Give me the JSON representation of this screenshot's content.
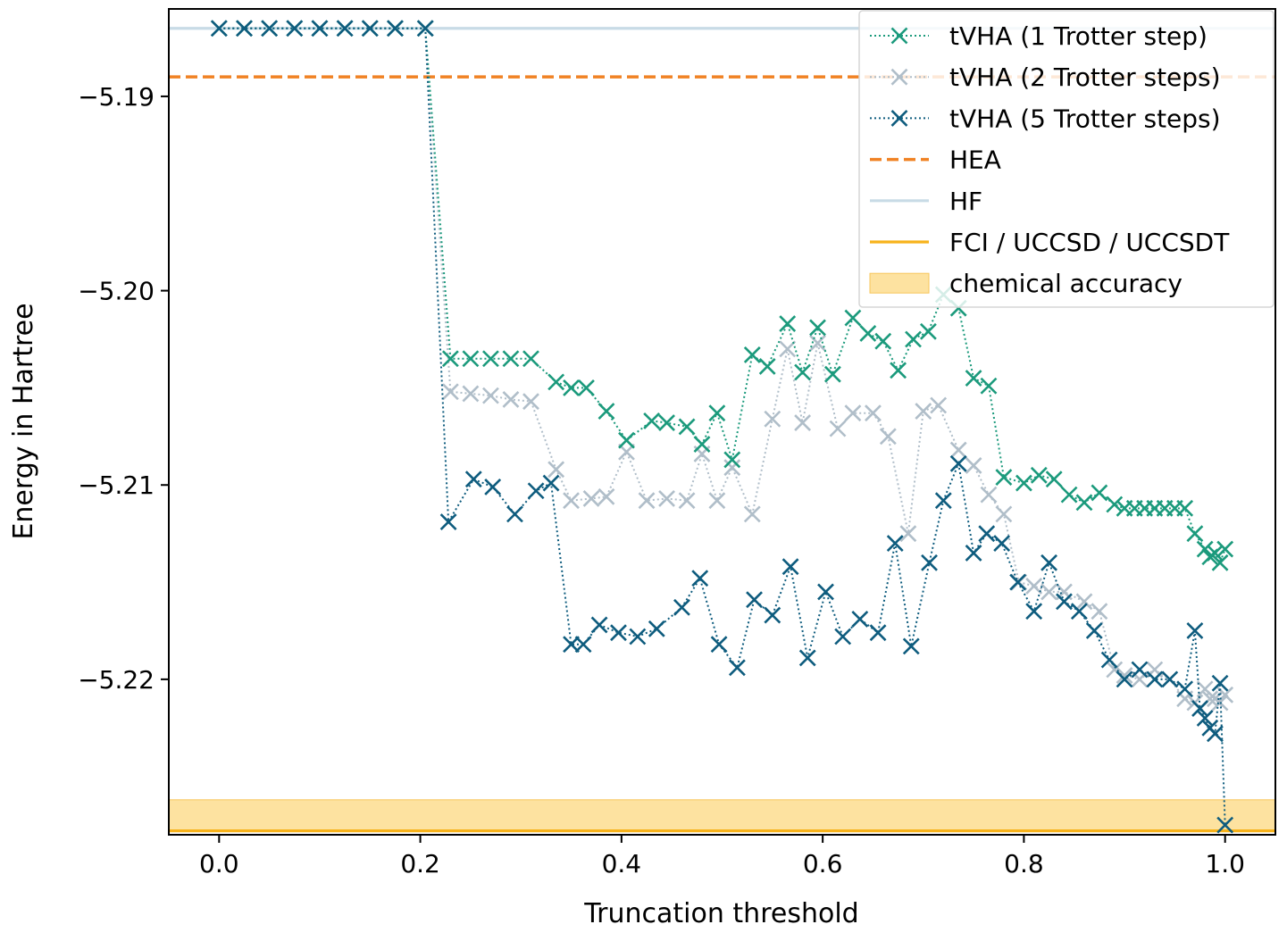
{
  "chart_data": {
    "type": "line",
    "title": "",
    "xlabel": "Truncation threshold",
    "ylabel": "Energy in Hartree",
    "xlim": [
      -0.05,
      1.05
    ],
    "ylim": [
      -5.228,
      -5.1855
    ],
    "xticks": [
      0.0,
      0.2,
      0.4,
      0.6,
      0.8,
      1.0
    ],
    "xtick_labels": [
      "0.0",
      "0.2",
      "0.4",
      "0.6",
      "0.8",
      "1.0"
    ],
    "yticks": [
      -5.19,
      -5.2,
      -5.21,
      -5.22
    ],
    "ytick_labels": [
      "−5.19",
      "−5.20",
      "−5.21",
      "−5.22"
    ],
    "grid": false,
    "legend_position": "top-right",
    "colors": {
      "t1": "#1b9a7c",
      "t2": "#b0bec9",
      "t5": "#0e5c7e",
      "hea": "#f08224",
      "hf": "#c8dbe6",
      "fci": "#f7b21a",
      "band": "#fde2a0"
    },
    "series": [
      {
        "name": "tVHA (1 Trotter step)",
        "color_key": "t1",
        "x": [
          0,
          0.025,
          0.05,
          0.075,
          0.1,
          0.125,
          0.15,
          0.175,
          0.205,
          0.23,
          0.25,
          0.27,
          0.29,
          0.31,
          0.335,
          0.35,
          0.365,
          0.385,
          0.405,
          0.43,
          0.445,
          0.465,
          0.48,
          0.495,
          0.51,
          0.53,
          0.545,
          0.565,
          0.58,
          0.595,
          0.61,
          0.63,
          0.645,
          0.66,
          0.675,
          0.69,
          0.705,
          0.72,
          0.735,
          0.75,
          0.765,
          0.78,
          0.8,
          0.815,
          0.83,
          0.845,
          0.86,
          0.875,
          0.89,
          0.9,
          0.91,
          0.92,
          0.93,
          0.94,
          0.95,
          0.96,
          0.97,
          0.98,
          0.985,
          0.99,
          0.995,
          1.0
        ],
        "values": [
          -5.1865,
          -5.1865,
          -5.1865,
          -5.1865,
          -5.1865,
          -5.1865,
          -5.1865,
          -5.1865,
          -5.1865,
          -5.2035,
          -5.2035,
          -5.2035,
          -5.2035,
          -5.2035,
          -5.2047,
          -5.205,
          -5.205,
          -5.2062,
          -5.2077,
          -5.2067,
          -5.2068,
          -5.207,
          -5.2079,
          -5.2063,
          -5.2087,
          -5.2033,
          -5.2039,
          -5.2017,
          -5.2042,
          -5.2019,
          -5.2043,
          -5.2014,
          -5.2022,
          -5.2026,
          -5.2041,
          -5.2025,
          -5.2021,
          -5.2002,
          -5.2009,
          -5.2045,
          -5.2049,
          -5.2096,
          -5.2099,
          -5.2095,
          -5.2097,
          -5.2105,
          -5.2109,
          -5.2104,
          -5.211,
          -5.2112,
          -5.2112,
          -5.2112,
          -5.2112,
          -5.2112,
          -5.2112,
          -5.2112,
          -5.2125,
          -5.2133,
          -5.2137,
          -5.2135,
          -5.214,
          -5.2133
        ]
      },
      {
        "name": "tVHA (2 Trotter steps)",
        "color_key": "t2",
        "x": [
          0,
          0.025,
          0.05,
          0.075,
          0.1,
          0.125,
          0.15,
          0.175,
          0.205,
          0.23,
          0.25,
          0.27,
          0.29,
          0.31,
          0.335,
          0.35,
          0.37,
          0.385,
          0.405,
          0.425,
          0.445,
          0.465,
          0.48,
          0.495,
          0.51,
          0.53,
          0.55,
          0.565,
          0.58,
          0.595,
          0.615,
          0.63,
          0.65,
          0.665,
          0.685,
          0.7,
          0.715,
          0.735,
          0.75,
          0.765,
          0.78,
          0.795,
          0.81,
          0.825,
          0.84,
          0.86,
          0.875,
          0.89,
          0.9,
          0.915,
          0.93,
          0.945,
          0.96,
          0.97,
          0.98,
          0.985,
          0.99,
          0.995,
          1.0
        ],
        "values": [
          -5.1865,
          -5.1865,
          -5.1865,
          -5.1865,
          -5.1865,
          -5.1865,
          -5.1865,
          -5.1865,
          -5.1865,
          -5.2052,
          -5.2053,
          -5.2054,
          -5.2056,
          -5.2057,
          -5.2092,
          -5.2108,
          -5.2107,
          -5.2106,
          -5.2083,
          -5.2108,
          -5.2107,
          -5.2108,
          -5.2084,
          -5.2108,
          -5.2091,
          -5.2115,
          -5.2066,
          -5.203,
          -5.2068,
          -5.2027,
          -5.2071,
          -5.2063,
          -5.2063,
          -5.2075,
          -5.2125,
          -5.2062,
          -5.2059,
          -5.2082,
          -5.209,
          -5.2105,
          -5.2115,
          -5.215,
          -5.2152,
          -5.2155,
          -5.2155,
          -5.216,
          -5.2165,
          -5.2195,
          -5.2198,
          -5.22,
          -5.2195,
          -5.22,
          -5.221,
          -5.2212,
          -5.2205,
          -5.221,
          -5.221,
          -5.2212,
          -5.2208
        ]
      },
      {
        "name": "tVHA (5 Trotter steps)",
        "color_key": "t5",
        "x": [
          0,
          0.025,
          0.05,
          0.075,
          0.1,
          0.125,
          0.15,
          0.175,
          0.205,
          0.228,
          0.253,
          0.272,
          0.294,
          0.315,
          0.33,
          0.35,
          0.362,
          0.378,
          0.397,
          0.416,
          0.435,
          0.46,
          0.478,
          0.497,
          0.515,
          0.532,
          0.55,
          0.568,
          0.585,
          0.603,
          0.62,
          0.637,
          0.655,
          0.672,
          0.688,
          0.706,
          0.72,
          0.735,
          0.75,
          0.763,
          0.778,
          0.794,
          0.81,
          0.825,
          0.84,
          0.855,
          0.87,
          0.885,
          0.9,
          0.915,
          0.93,
          0.945,
          0.96,
          0.97,
          0.975,
          0.98,
          0.985,
          0.99,
          0.995,
          1.0
        ],
        "values": [
          -5.1865,
          -5.1865,
          -5.1865,
          -5.1865,
          -5.1865,
          -5.1865,
          -5.1865,
          -5.1865,
          -5.1865,
          -5.2119,
          -5.2097,
          -5.2101,
          -5.2115,
          -5.2103,
          -5.2099,
          -5.2182,
          -5.2182,
          -5.2172,
          -5.2176,
          -5.2178,
          -5.2174,
          -5.2163,
          -5.2148,
          -5.2182,
          -5.2194,
          -5.2159,
          -5.2167,
          -5.2142,
          -5.2189,
          -5.2155,
          -5.2178,
          -5.2169,
          -5.2176,
          -5.213,
          -5.2183,
          -5.214,
          -5.2108,
          -5.2089,
          -5.2135,
          -5.2125,
          -5.213,
          -5.215,
          -5.2165,
          -5.214,
          -5.216,
          -5.2165,
          -5.2175,
          -5.219,
          -5.22,
          -5.2195,
          -5.22,
          -5.22,
          -5.2205,
          -5.2175,
          -5.2215,
          -5.222,
          -5.2225,
          -5.2228,
          -5.2202,
          -5.2275
        ]
      }
    ],
    "reference_lines": [
      {
        "name": "HEA",
        "color_key": "hea",
        "style": "dashed",
        "value": -5.189
      },
      {
        "name": "HF",
        "color_key": "hf",
        "style": "solid",
        "value": -5.1865
      },
      {
        "name": "FCI / UCCSD / UCCSDT",
        "color_key": "fci",
        "style": "solid",
        "value": -5.2278
      }
    ],
    "band": {
      "name": "chemical accuracy",
      "color_key": "band",
      "range": [
        -5.2278,
        -5.2262
      ]
    },
    "legend": [
      {
        "label": "tVHA (1 Trotter step)",
        "kind": "marker",
        "color_key": "t1"
      },
      {
        "label": "tVHA (2 Trotter steps)",
        "kind": "marker",
        "color_key": "t2"
      },
      {
        "label": "tVHA (5 Trotter steps)",
        "kind": "marker",
        "color_key": "t5"
      },
      {
        "label": "HEA",
        "kind": "dashed",
        "color_key": "hea"
      },
      {
        "label": "HF",
        "kind": "line",
        "color_key": "hf"
      },
      {
        "label": "FCI / UCCSD / UCCSDT",
        "kind": "line",
        "color_key": "fci"
      },
      {
        "label": "chemical accuracy",
        "kind": "patch",
        "color_key": "band"
      }
    ]
  }
}
